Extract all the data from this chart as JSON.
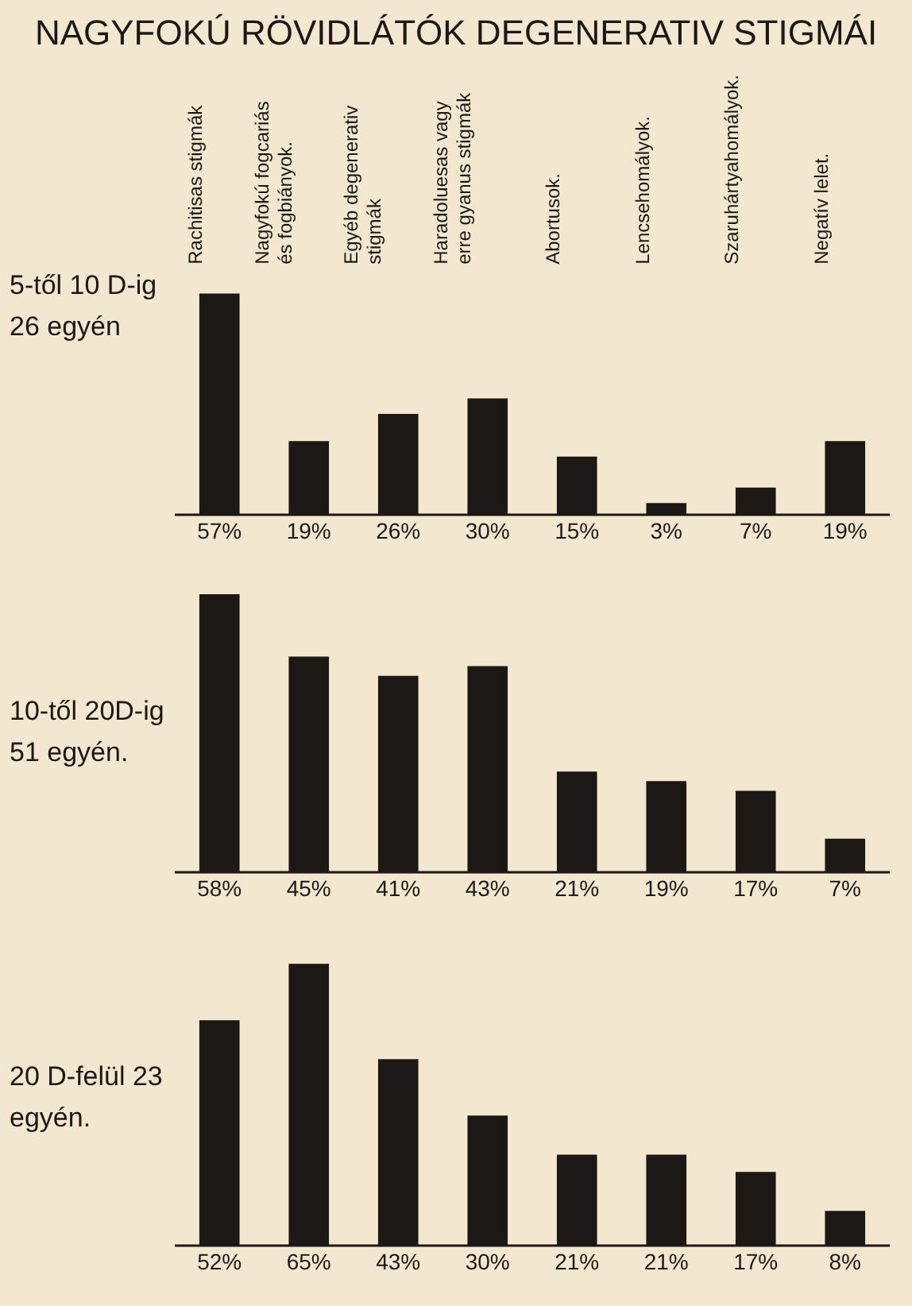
{
  "chart_data": [
    {
      "type": "bar",
      "title": "NAGYFOKÚ RÖVIDLÁTÓK DEGENERATIV STIGMÁI",
      "ylabel": "5-től 10 D-ig 26 egyén",
      "tick_labels": "x",
      "color": "#1c1816",
      "categories": [
        "Rachitisas stigmák",
        "Nagyfokú fogcariás és fogbiányok.",
        "Egyéb degenerativ stigmák",
        "Haradoluesas vagy erre gyanus stigmák",
        "Abortusok.",
        "Lencsehomályok.",
        "Szaruhártyahomályok.",
        "Negatív lelet."
      ],
      "values": [
        57,
        19,
        26,
        30,
        15,
        3,
        7,
        19
      ],
      "value_labels": [
        "57%",
        "19%",
        "26%",
        "30%",
        "15%",
        "3%",
        "7%",
        "19%"
      ]
    },
    {
      "type": "bar",
      "ylabel": "10-től 20D-ig 51 egyén.",
      "tick_labels": "x",
      "color": "#1c1816",
      "categories": [
        null,
        null,
        null,
        null,
        null,
        null,
        null,
        null
      ],
      "values": [
        58,
        45,
        41,
        43,
        21,
        19,
        17,
        7
      ],
      "value_labels": [
        "58%",
        "45%",
        "41%",
        "43%",
        "21%",
        "19%",
        "17%",
        "7%"
      ]
    },
    {
      "type": "bar",
      "ylabel": "20 D-felül 23 egyén.",
      "tick_labels": "x",
      "color": "#1c1816",
      "categories": [
        null,
        null,
        null,
        null,
        null,
        null,
        null,
        null
      ],
      "values": [
        52,
        65,
        43,
        30,
        21,
        21,
        17,
        8
      ],
      "value_labels": [
        "52%",
        "65%",
        "43%",
        "30%",
        "21%",
        "21%",
        "17%",
        "8%"
      ]
    }
  ]
}
